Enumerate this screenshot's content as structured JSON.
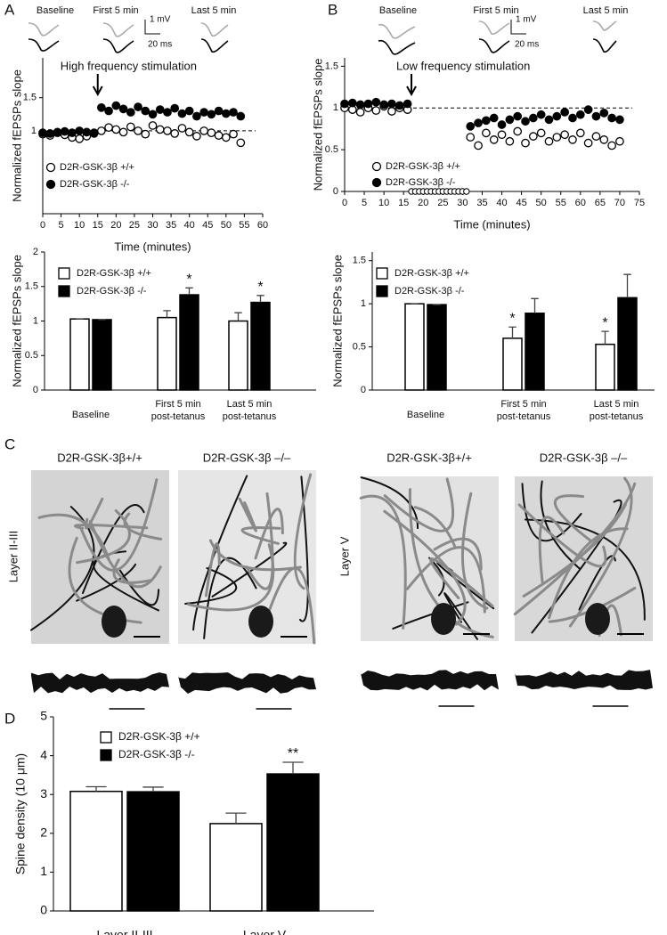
{
  "chart_data": [
    {
      "type": "scatter",
      "panel": "A",
      "inset_labels": [
        "Baseline",
        "First 5 min",
        "Last 5 min"
      ],
      "scale_labels": [
        "1 mV",
        "20 ms"
      ],
      "annotation": "High frequency stimulation",
      "annotation_x": 15,
      "ref_line": 1,
      "xlabel": "Time (minutes)",
      "ylabel": "Normalized  fEPSPs slope",
      "xlim": [
        0,
        60
      ],
      "xticks": [
        0,
        5,
        10,
        15,
        20,
        25,
        30,
        35,
        40,
        45,
        50,
        55,
        60
      ],
      "ylim": [
        -0.25,
        2.1
      ],
      "yticks": [
        1,
        1.5
      ],
      "x": [
        0,
        2,
        4,
        6,
        8,
        10,
        12,
        14,
        16,
        18,
        20,
        22,
        24,
        26,
        28,
        30,
        32,
        34,
        36,
        38,
        40,
        42,
        44,
        46,
        48,
        50,
        52,
        54
      ],
      "series": [
        {
          "name": "D2R-GSK-3β +/+",
          "color": "#000000",
          "marker": "open",
          "values": [
            0.95,
            0.93,
            0.97,
            0.94,
            0.9,
            0.88,
            0.92,
            0.96,
            1.0,
            1.05,
            1.02,
            0.98,
            1.06,
            1.0,
            0.95,
            1.08,
            1.02,
            1.0,
            0.96,
            1.04,
            0.98,
            0.92,
            1.0,
            0.97,
            0.93,
            0.9,
            0.95,
            0.82
          ]
        },
        {
          "name": "D2R-GSK-3β -/-",
          "color": "#000000",
          "marker": "filled",
          "values": [
            0.97,
            0.96,
            0.98,
            0.99,
            0.97,
            1.0,
            0.98,
            0.97,
            1.35,
            1.3,
            1.38,
            1.33,
            1.28,
            1.36,
            1.3,
            1.25,
            1.32,
            1.28,
            1.34,
            1.26,
            1.3,
            1.22,
            1.28,
            1.25,
            1.3,
            1.26,
            1.28,
            1.22
          ]
        }
      ]
    },
    {
      "type": "scatter",
      "panel": "B",
      "inset_labels": [
        "Baseline",
        "First 5 min",
        "Last 5 min"
      ],
      "scale_labels": [
        "1 mV",
        "20 ms"
      ],
      "annotation": "Low frequency stimulation",
      "annotation_x": 17,
      "ref_line": 1,
      "xlabel": "Time (minutes)",
      "ylabel": "Normalized  fEPSPs slope",
      "xlim": [
        0,
        75
      ],
      "xticks": [
        0,
        5,
        10,
        15,
        20,
        25,
        30,
        35,
        40,
        45,
        50,
        55,
        60,
        65,
        70,
        75
      ],
      "ylim": [
        0,
        1.6
      ],
      "yticks": [
        0,
        0.5,
        1,
        1.5
      ],
      "stimulation_x": [
        17,
        18,
        19,
        20,
        21,
        22,
        23,
        24,
        25,
        26,
        27,
        28,
        29,
        30,
        31
      ],
      "x": [
        0,
        2,
        4,
        6,
        8,
        10,
        12,
        14,
        16,
        18,
        20,
        22,
        24,
        26,
        28,
        30,
        32,
        34,
        36,
        38,
        40,
        42,
        44,
        46,
        48,
        50,
        52,
        54,
        56,
        58,
        60,
        62,
        64,
        66,
        68,
        70
      ],
      "series": [
        {
          "name": "D2R-GSK-3β +/+",
          "color": "#000000",
          "marker": "open",
          "values": [
            1.0,
            0.98,
            0.95,
            1.0,
            0.97,
            1.02,
            0.96,
            1.0,
            0.98,
            null,
            null,
            null,
            null,
            null,
            null,
            null,
            0.65,
            0.55,
            0.7,
            0.62,
            0.68,
            0.6,
            0.72,
            0.58,
            0.66,
            0.7,
            0.6,
            0.65,
            0.68,
            0.62,
            0.7,
            0.58,
            0.66,
            0.62,
            0.55,
            0.6
          ]
        },
        {
          "name": "D2R-GSK-3β -/-",
          "color": "#000000",
          "marker": "filled",
          "values": [
            1.05,
            1.06,
            1.04,
            1.05,
            1.07,
            1.04,
            1.05,
            1.03,
            1.05,
            null,
            null,
            null,
            null,
            null,
            null,
            null,
            0.78,
            0.82,
            0.85,
            0.88,
            0.8,
            0.86,
            0.9,
            0.84,
            0.88,
            0.92,
            0.86,
            0.9,
            0.95,
            0.88,
            0.92,
            0.98,
            0.9,
            0.94,
            0.88,
            0.86
          ]
        }
      ]
    },
    {
      "type": "bar",
      "ylabel": "Normalized  fEPSPs slope",
      "categories": [
        "Baseline",
        "First 5 min\npost-tetanus",
        "Last 5 min\npost-tetanus"
      ],
      "ylim": [
        0,
        2
      ],
      "yticks": [
        0,
        0.5,
        1,
        1.5,
        2
      ],
      "series": [
        {
          "name": "D2R-GSK-3β +/+",
          "color": "#ffffff",
          "values": [
            1.03,
            1.05,
            1.0
          ],
          "errors": [
            0,
            0.1,
            0.12
          ],
          "significance": [
            null,
            null,
            null
          ]
        },
        {
          "name": "D2R-GSK-3β -/-",
          "color": "#000000",
          "values": [
            1.02,
            1.38,
            1.27
          ],
          "errors": [
            0,
            0.1,
            0.1
          ],
          "significance": [
            null,
            "*",
            "*"
          ]
        }
      ]
    },
    {
      "type": "bar",
      "ylabel": "Normalized  fEPSPs slope",
      "categories": [
        "Baseline",
        "First 5 min\npost-tetanus",
        "Last 5 min\npost-tetanus"
      ],
      "ylim": [
        0,
        1.6
      ],
      "yticks": [
        0,
        0.5,
        1,
        1.5
      ],
      "series": [
        {
          "name": "D2R-GSK-3β +/+",
          "color": "#ffffff",
          "values": [
            1.0,
            0.6,
            0.53
          ],
          "errors": [
            0,
            0.13,
            0.15
          ],
          "significance": [
            null,
            "*",
            "*"
          ]
        },
        {
          "name": "D2R-GSK-3β -/-",
          "color": "#000000",
          "values": [
            0.99,
            0.89,
            1.07
          ],
          "errors": [
            0,
            0.17,
            0.27
          ],
          "significance": [
            null,
            null,
            null
          ]
        }
      ]
    },
    {
      "type": "bar",
      "panel": "D",
      "ylabel": "Spine density (10 μm)",
      "categories": [
        "Layer II-III",
        "Layer V"
      ],
      "ylim": [
        0,
        5
      ],
      "yticks": [
        0,
        1,
        2,
        3,
        4,
        5
      ],
      "series": [
        {
          "name": "D2R-GSK-3β +/+",
          "color": "#ffffff",
          "values": [
            3.08,
            2.25
          ],
          "errors": [
            0.12,
            0.27
          ],
          "significance": [
            null,
            null
          ]
        },
        {
          "name": "D2R-GSK-3β -/-",
          "color": "#000000",
          "values": [
            3.07,
            3.53
          ],
          "errors": [
            0.12,
            0.3
          ],
          "significance": [
            null,
            "**"
          ]
        }
      ]
    }
  ],
  "figure_c": {
    "panel": "C",
    "column_labels": [
      "D2R-GSK-3β+/+",
      "D2R-GSK-3β –/–",
      "D2R-GSK-3β+/+",
      "D2R-GSK-3β –/–"
    ],
    "row_labels": [
      "Layer II-III",
      "Layer V"
    ]
  }
}
